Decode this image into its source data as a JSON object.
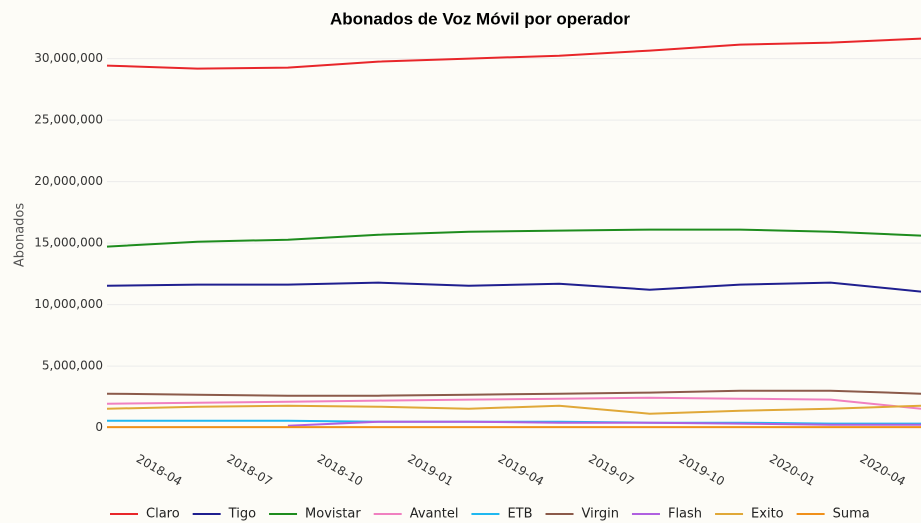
{
  "chart_data": {
    "type": "line",
    "title": "Abonados de Voz Móvil por operador",
    "y_label": "Abonados",
    "x": [
      "2018-03",
      "2018-06",
      "2018-09",
      "2018-12",
      "2019-03",
      "2019-06",
      "2019-09",
      "2019-12",
      "2020-03",
      "2020-06"
    ],
    "xlim": [
      "2018-03",
      "2020-06"
    ],
    "xticks": [
      "2018-04",
      "2018-07",
      "2018-10",
      "2019-01",
      "2019-04",
      "2019-07",
      "2019-10",
      "2020-01",
      "2020-04"
    ],
    "ylim": [
      -1000000,
      32000000
    ],
    "yticks": [
      {
        "value": 0,
        "label": "0"
      },
      {
        "value": 5000000,
        "label": "5,000,000"
      },
      {
        "value": 10000000,
        "label": "10,000,000"
      },
      {
        "value": 15000000,
        "label": "15,000,000"
      },
      {
        "value": 20000000,
        "label": "20,000,000"
      },
      {
        "value": 25000000,
        "label": "25,000,000"
      },
      {
        "value": 30000000,
        "label": "30,000,000"
      }
    ],
    "grid": true,
    "legend": "bottom",
    "series": [
      {
        "name": "Claro",
        "color": "#e8262a",
        "values": [
          29430000,
          29190000,
          29270000,
          29760000,
          30000000,
          30240000,
          30650000,
          31140000,
          31300000,
          31630000
        ]
      },
      {
        "name": "Tigo",
        "color": "#1f1f8f",
        "values": [
          11540000,
          11630000,
          11630000,
          11790000,
          11540000,
          11700000,
          11220000,
          11630000,
          11790000,
          11060000
        ]
      },
      {
        "name": "Movistar",
        "color": "#1e8c1e",
        "values": [
          14720000,
          15120000,
          15280000,
          15690000,
          15930000,
          16020000,
          16100000,
          16100000,
          15930000,
          15610000
        ]
      },
      {
        "name": "Avantel",
        "color": "#f080c0",
        "values": [
          1950000,
          2030000,
          2110000,
          2200000,
          2280000,
          2360000,
          2440000,
          2360000,
          2280000,
          1540000
        ]
      },
      {
        "name": "ETB",
        "color": "#20b8f0",
        "values": [
          570000,
          570000,
          570000,
          490000,
          490000,
          490000,
          410000,
          410000,
          330000,
          330000
        ]
      },
      {
        "name": "Virgin",
        "color": "#8b5a4a",
        "values": [
          2760000,
          2680000,
          2600000,
          2600000,
          2680000,
          2760000,
          2850000,
          3010000,
          3010000,
          2760000
        ]
      },
      {
        "name": "Flash",
        "color": "#b060e0",
        "values": [
          null,
          null,
          160000,
          490000,
          490000,
          410000,
          410000,
          330000,
          240000,
          240000
        ]
      },
      {
        "name": "Exito",
        "color": "#e0a838",
        "values": [
          1540000,
          1710000,
          1790000,
          1710000,
          1540000,
          1790000,
          1140000,
          1380000,
          1540000,
          1790000
        ]
      },
      {
        "name": "Suma",
        "color": "#f0901a",
        "values": [
          50000,
          50000,
          50000,
          50000,
          50000,
          50000,
          50000,
          50000,
          50000,
          50000
        ]
      }
    ]
  }
}
